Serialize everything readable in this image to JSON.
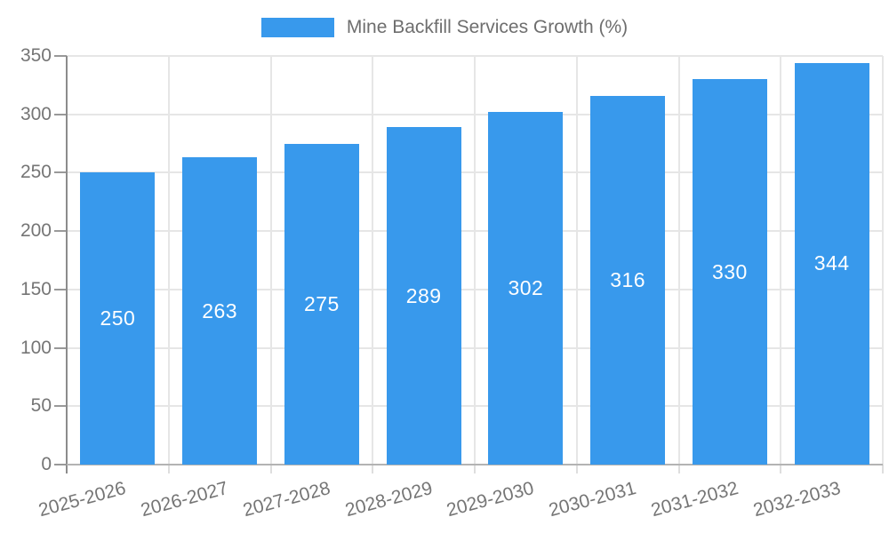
{
  "legend": {
    "label": "Mine Backfill Services Growth (%)"
  },
  "chart_data": {
    "type": "bar",
    "title": "Mine Backfill Services Growth (%)",
    "categories": [
      "2025-2026",
      "2026-2027",
      "2027-2028",
      "2028-2029",
      "2029-2030",
      "2030-2031",
      "2031-2032",
      "2032-2033"
    ],
    "values": [
      250,
      263,
      275,
      289,
      302,
      316,
      330,
      344
    ],
    "xlabel": "",
    "ylabel": "",
    "ylim": [
      0,
      350
    ],
    "ytick_step": 50,
    "grid": true,
    "legend_position": "top",
    "bar_label_position": "inside-center"
  },
  "colors": {
    "bar": "#3899ec",
    "bar_value_label": "#ffffff",
    "grid_line": "#e6e6e6",
    "y_axis_line": "#8c8c8c",
    "x_axis_line": "#b3b3b3",
    "y_tick": "#999999",
    "x_tick": "#dedede",
    "axis_text": "#757575",
    "legend_text": "#6e6e6e",
    "background": "#ffffff"
  }
}
